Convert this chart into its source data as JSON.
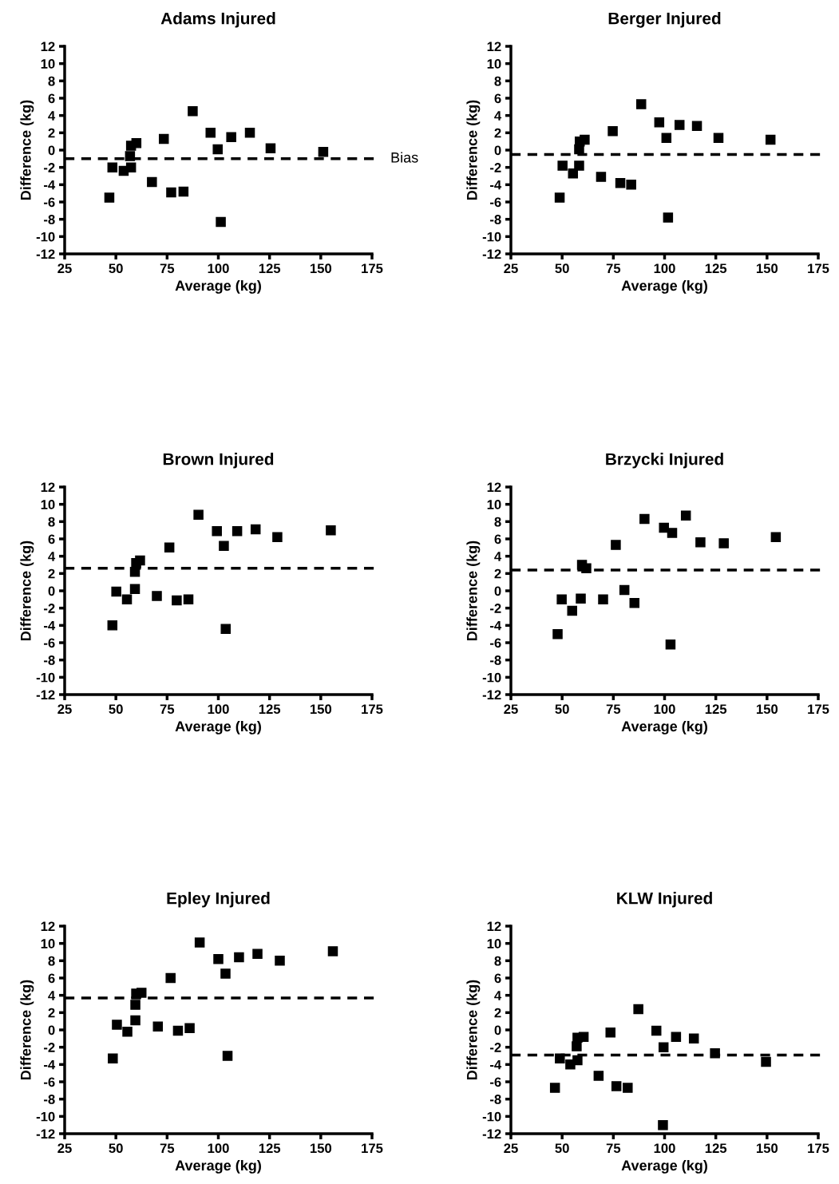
{
  "chart_data": [
    {
      "type": "scatter",
      "title": "Adams Injured",
      "xlabel": "Average (kg)",
      "ylabel": "Difference (kg)",
      "xlim": [
        25,
        175
      ],
      "xticks": [
        25,
        50,
        75,
        100,
        125,
        150,
        175
      ],
      "ylim": [
        -12,
        12
      ],
      "yticks": [
        -12,
        -10,
        -8,
        -6,
        -4,
        -2,
        0,
        2,
        4,
        6,
        8,
        10,
        12
      ],
      "grid": false,
      "legend": false,
      "marker": "square",
      "series": [
        {
          "color": "#000000",
          "x": [
            46.8,
            48.3,
            53.8,
            56.9,
            57.4,
            57.4,
            60,
            73.4,
            67.6,
            77,
            83,
            87.5,
            96.2,
            99.7,
            101.2,
            106.3,
            115.4,
            125.5,
            151.2
          ],
          "values": [
            -5.5,
            -2,
            -2.4,
            -0.7,
            -2,
            0.5,
            0.8,
            1.3,
            -3.7,
            -4.9,
            -4.8,
            4.5,
            2.0,
            0.1,
            -8.3,
            1.5,
            2.0,
            0.2,
            -0.2
          ]
        }
      ],
      "ref_lines": [
        {
          "axis": "y",
          "value": -1,
          "label": "Bias",
          "color": "#000000",
          "line_style": "dashed"
        }
      ]
    },
    {
      "type": "scatter",
      "title": "Berger Injured",
      "xlabel": "Average (kg)",
      "ylabel": "Difference (kg)",
      "xlim": [
        25,
        175
      ],
      "xticks": [
        25,
        50,
        75,
        100,
        125,
        150,
        175
      ],
      "ylim": [
        -12,
        12
      ],
      "yticks": [
        -12,
        -10,
        -8,
        -6,
        -4,
        -2,
        0,
        2,
        4,
        6,
        8,
        10,
        12
      ],
      "grid": false,
      "legend": false,
      "marker": "square",
      "series": [
        {
          "color": "#000000",
          "x": [
            48.8,
            50.2,
            55.3,
            58.3,
            58.6,
            58.3,
            61,
            69,
            74.7,
            78.4,
            83.7,
            88.6,
            97.4,
            100.9,
            101.7,
            107.3,
            115.8,
            126.3,
            151.7
          ],
          "values": [
            -5.5,
            -1.8,
            -2.7,
            0.1,
            1.0,
            -1.8,
            1.2,
            -3.1,
            2.2,
            -3.8,
            -4.0,
            5.3,
            3.2,
            1.4,
            -7.8,
            2.9,
            2.8,
            1.4,
            1.2
          ]
        }
      ],
      "ref_lines": [
        {
          "axis": "y",
          "value": -0.5,
          "color": "#000000",
          "line_style": "dashed"
        }
      ]
    },
    {
      "type": "scatter",
      "title": "Brown Injured",
      "xlabel": "Average (kg)",
      "ylabel": "Difference (kg)",
      "xlim": [
        25,
        175
      ],
      "xticks": [
        25,
        50,
        75,
        100,
        125,
        150,
        175
      ],
      "ylim": [
        -12,
        12
      ],
      "yticks": [
        -12,
        -10,
        -8,
        -6,
        -4,
        -2,
        0,
        2,
        4,
        6,
        8,
        10,
        12
      ],
      "grid": false,
      "legend": false,
      "marker": "square",
      "series": [
        {
          "color": "#000000",
          "x": [
            48.3,
            50.2,
            55.4,
            59.3,
            59.3,
            59.9,
            61.8,
            70,
            76.1,
            79.7,
            85.4,
            90.3,
            99.3,
            102.7,
            103.6,
            109.2,
            118.2,
            128.8,
            154.9
          ],
          "values": [
            -4.0,
            -0.1,
            -1.0,
            0.2,
            2.2,
            3.2,
            3.5,
            -0.6,
            5.0,
            -1.1,
            -1.0,
            8.8,
            6.9,
            5.2,
            -4.4,
            6.9,
            7.1,
            6.2,
            7.0
          ]
        }
      ],
      "ref_lines": [
        {
          "axis": "y",
          "value": 2.6,
          "color": "#000000",
          "line_style": "dashed"
        }
      ]
    },
    {
      "type": "scatter",
      "title": "Brzycki Injured",
      "xlabel": "Average (kg)",
      "ylabel": "Difference (kg)",
      "xlim": [
        25,
        175
      ],
      "xticks": [
        25,
        50,
        75,
        100,
        125,
        150,
        175
      ],
      "ylim": [
        -12,
        12
      ],
      "yticks": [
        -12,
        -10,
        -8,
        -6,
        -4,
        -2,
        0,
        2,
        4,
        6,
        8,
        10,
        12
      ],
      "grid": false,
      "legend": false,
      "marker": "square",
      "series": [
        {
          "color": "#000000",
          "x": [
            47.8,
            49.8,
            54.9,
            59.1,
            59.7,
            61.8,
            70,
            76.2,
            80.4,
            85.3,
            90.2,
            99.7,
            103.7,
            102.9,
            110.4,
            117.5,
            128.9,
            154.3
          ],
          "values": [
            -5.0,
            -1.0,
            -2.3,
            -0.9,
            3.0,
            2.6,
            -1.0,
            5.3,
            0.1,
            -1.4,
            8.3,
            7.3,
            6.7,
            -6.2,
            8.7,
            5.6,
            5.5,
            6.2
          ]
        }
      ],
      "ref_lines": [
        {
          "axis": "y",
          "value": 2.4,
          "color": "#000000",
          "line_style": "dashed"
        }
      ]
    },
    {
      "type": "scatter",
      "title": "Epley Injured",
      "xlabel": "Average (kg)",
      "ylabel": "Difference (kg)",
      "xlim": [
        25,
        175
      ],
      "xticks": [
        25,
        50,
        75,
        100,
        125,
        150,
        175
      ],
      "ylim": [
        -12,
        12
      ],
      "yticks": [
        -12,
        -10,
        -8,
        -6,
        -4,
        -2,
        0,
        2,
        4,
        6,
        8,
        10,
        12
      ],
      "grid": false,
      "legend": false,
      "marker": "square",
      "series": [
        {
          "color": "#000000",
          "x": [
            48.5,
            50.5,
            55.6,
            59.5,
            59.5,
            59.9,
            62.5,
            70.5,
            76.7,
            80.3,
            86,
            90.9,
            100,
            103.5,
            104.5,
            110.1,
            119.1,
            130,
            155.9
          ],
          "values": [
            -3.3,
            0.6,
            -0.2,
            1.1,
            2.9,
            4.2,
            4.3,
            0.4,
            6.0,
            -0.1,
            0.2,
            10.1,
            8.2,
            6.5,
            -3.0,
            8.4,
            8.8,
            8.0,
            9.1
          ]
        }
      ],
      "ref_lines": [
        {
          "axis": "y",
          "value": 3.7,
          "color": "#000000",
          "line_style": "dashed"
        }
      ]
    },
    {
      "type": "scatter",
      "title": "KLW Injured",
      "xlabel": "Average (kg)",
      "ylabel": "Difference (kg)",
      "xlim": [
        25,
        175
      ],
      "xticks": [
        25,
        50,
        75,
        100,
        125,
        150,
        175
      ],
      "ylim": [
        -12,
        12
      ],
      "yticks": [
        -12,
        -10,
        -8,
        -6,
        -4,
        -2,
        0,
        2,
        4,
        6,
        8,
        10,
        12
      ],
      "grid": false,
      "legend": false,
      "marker": "square",
      "series": [
        {
          "color": "#000000",
          "x": [
            46.5,
            48.9,
            54,
            57.1,
            57.5,
            57.5,
            60.5,
            67.8,
            73.6,
            76.5,
            82,
            87.2,
            96,
            99.5,
            99.2,
            105.6,
            114.3,
            124.6,
            149.5
          ],
          "values": [
            -6.7,
            -3.3,
            -4.0,
            -1.9,
            -0.9,
            -3.5,
            -0.8,
            -5.3,
            -0.3,
            -6.5,
            -6.7,
            2.4,
            -0.1,
            -2.0,
            -11.0,
            -0.8,
            -1.0,
            -2.7,
            -3.7
          ]
        }
      ],
      "ref_lines": [
        {
          "axis": "y",
          "value": -2.9,
          "color": "#000000",
          "line_style": "dashed"
        }
      ]
    }
  ]
}
